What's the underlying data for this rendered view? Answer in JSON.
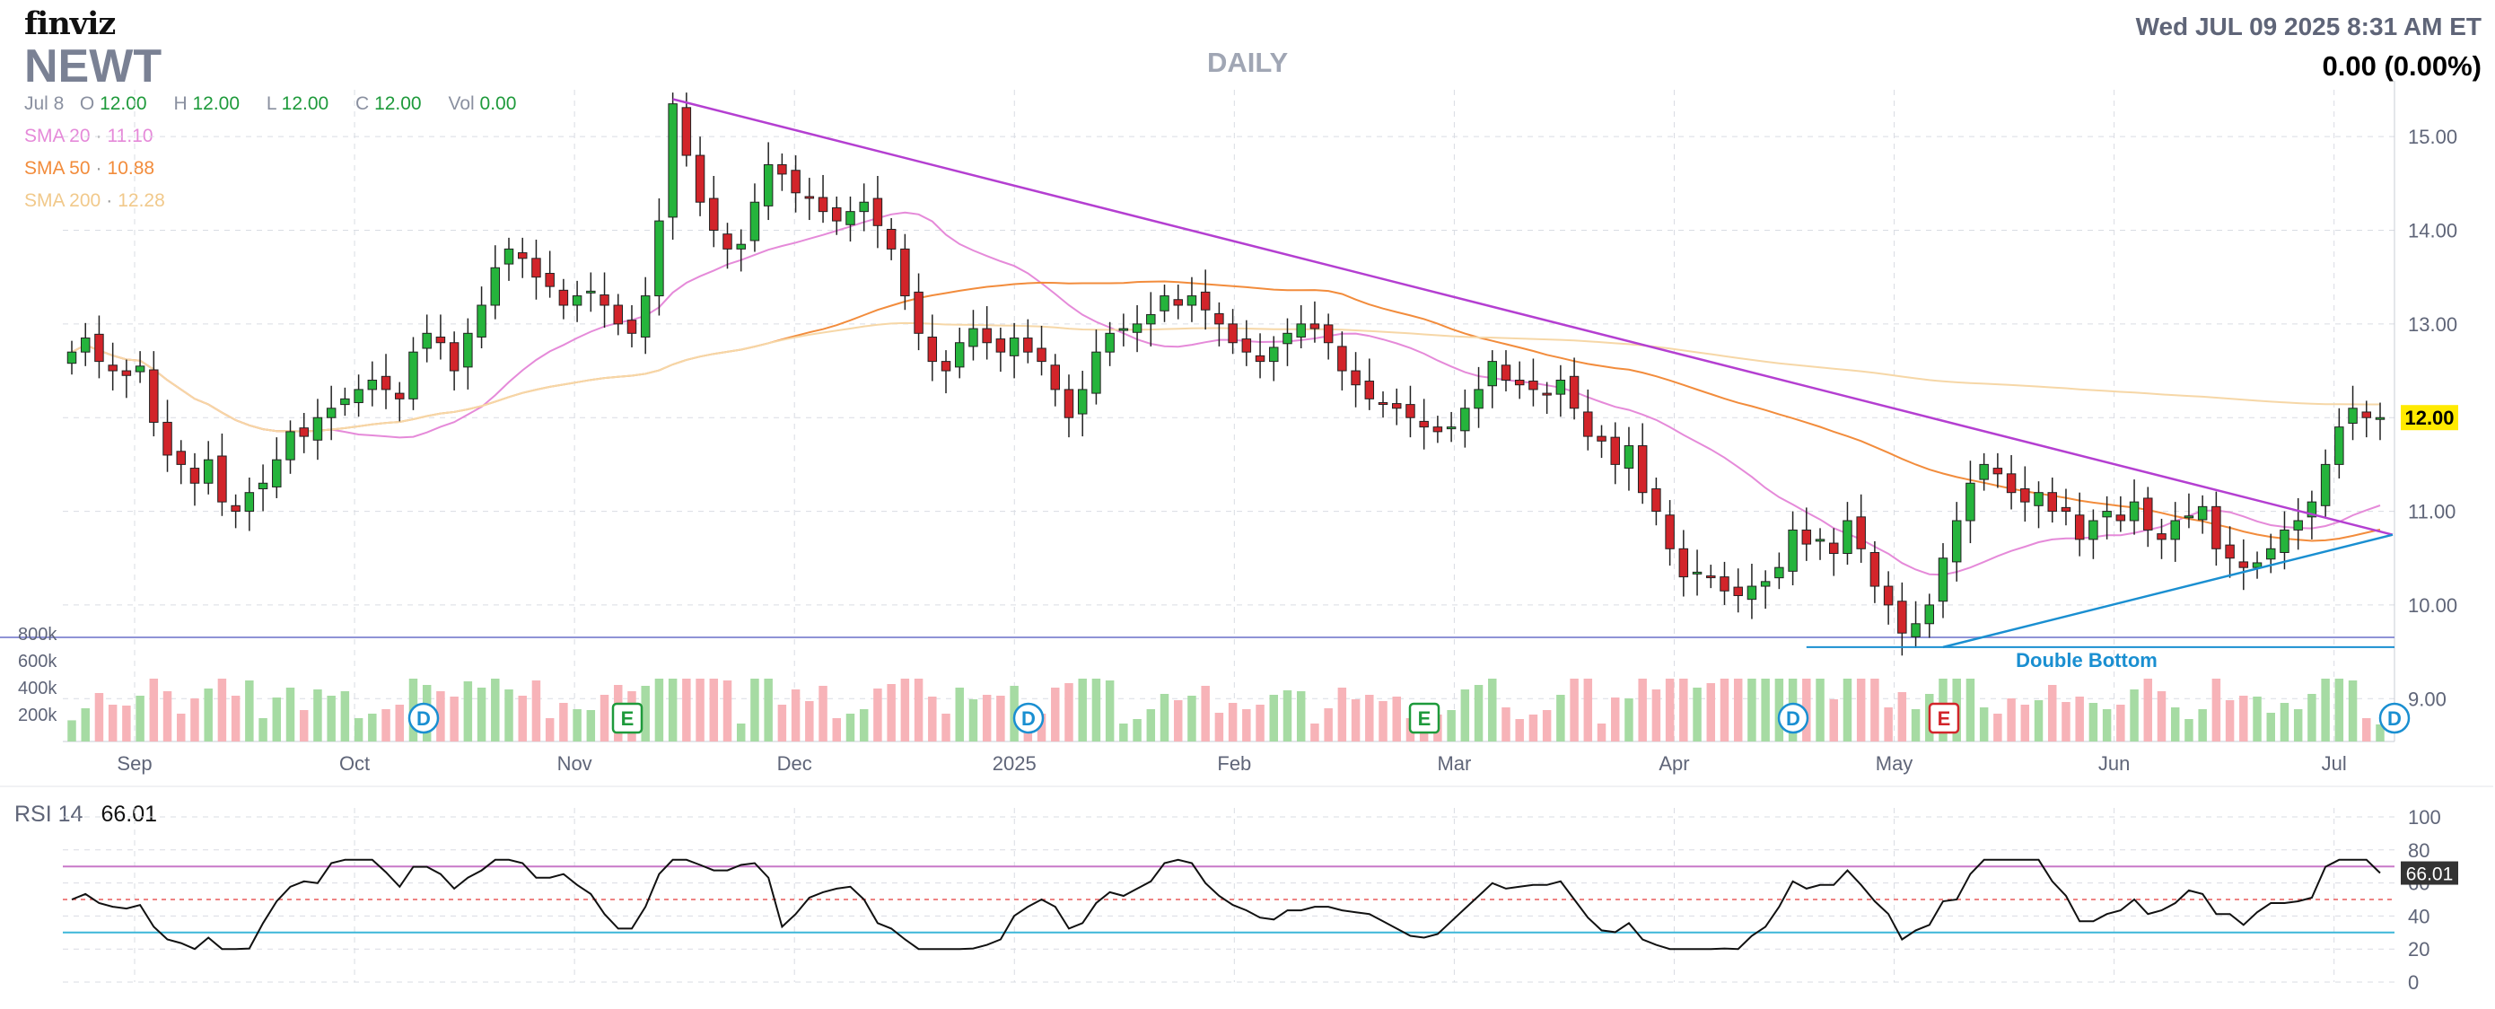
{
  "header": {
    "logo": "finviz",
    "ticker": "NEWT",
    "period": "DAILY",
    "datetime": "Wed JUL 09 2025 8:31 AM ET",
    "change": "0.00 (0.00%)",
    "ohlc": {
      "date": "Jul 8",
      "o_label": "O",
      "o": "12.00",
      "h_label": "H",
      "h": "12.00",
      "l_label": "L",
      "l": "12.00",
      "c_label": "C",
      "c": "12.00",
      "vol_label": "Vol",
      "vol": "0.00"
    }
  },
  "sma": [
    {
      "label": "SMA 20",
      "value": "11.10",
      "color": "#e58ad9"
    },
    {
      "label": "SMA 50",
      "value": "10.88",
      "color": "#f28c3c"
    },
    {
      "label": "SMA 200",
      "value": "12.28",
      "color": "#f6d7a7"
    }
  ],
  "colors": {
    "up": "#25b43c",
    "down": "#d2242a",
    "up_vol": "#a6dba3",
    "down_vol": "#f7b3b8",
    "trendline": "#b43fd1",
    "support": "#1a8fd1",
    "grid": "#d9dce3",
    "price_tag": "#ffea00"
  },
  "chart_data": [
    {
      "type": "candlestick",
      "title": "NEWT DAILY",
      "y_ticks": [
        "15.00",
        "14.00",
        "13.00",
        "12.00",
        "11.00",
        "10.00",
        "9.00"
      ],
      "ylim": [
        8.6,
        15.5
      ],
      "x_ticks": [
        "Sep",
        "Oct",
        "Nov",
        "Dec",
        "2025",
        "Feb",
        "Mar",
        "Apr",
        "May",
        "Jun",
        "Jul"
      ],
      "last_price_label": "12.00",
      "start": 12.7,
      "end": 12.0,
      "closes": [
        12.7,
        12.85,
        12.6,
        12.5,
        12.45,
        12.55,
        11.95,
        11.6,
        11.5,
        11.3,
        11.55,
        11.1,
        11.0,
        11.2,
        11.3,
        11.55,
        11.85,
        11.8,
        12.0,
        12.1,
        12.2,
        12.3,
        12.4,
        12.3,
        12.2,
        12.7,
        12.9,
        12.8,
        12.5,
        12.9,
        13.2,
        13.6,
        13.8,
        13.7,
        13.5,
        13.4,
        13.2,
        13.3,
        13.35,
        13.2,
        13.0,
        12.9,
        13.3,
        14.1,
        15.35,
        14.8,
        14.3,
        14.0,
        13.8,
        13.85,
        14.3,
        14.7,
        14.6,
        14.4,
        14.35,
        14.2,
        14.1,
        14.2,
        14.3,
        14.05,
        13.8,
        13.3,
        12.9,
        12.6,
        12.5,
        12.8,
        12.95,
        12.8,
        12.7,
        12.85,
        12.7,
        12.6,
        12.3,
        12.0,
        12.3,
        12.7,
        12.9,
        12.95,
        13.0,
        13.1,
        13.3,
        13.2,
        13.3,
        13.15,
        13.0,
        12.8,
        12.7,
        12.6,
        12.75,
        12.9,
        13.0,
        12.95,
        12.8,
        12.5,
        12.35,
        12.2,
        12.15,
        12.1,
        12.0,
        11.9,
        11.85,
        11.9,
        12.1,
        12.3,
        12.6,
        12.4,
        12.35,
        12.3,
        12.25,
        12.4,
        12.1,
        11.8,
        11.75,
        11.5,
        11.7,
        11.2,
        11.0,
        10.6,
        10.3,
        10.35,
        10.3,
        10.15,
        10.1,
        10.2,
        10.25,
        10.4,
        10.8,
        10.65,
        10.7,
        10.55,
        10.9,
        10.6,
        10.2,
        10.0,
        9.7,
        9.8,
        10.0,
        10.5,
        10.9,
        11.3,
        11.5,
        11.4,
        11.2,
        11.1,
        11.2,
        11.0,
        11.0,
        10.7,
        10.9,
        11.0,
        10.9,
        11.1,
        10.8,
        10.7,
        10.9,
        10.95,
        11.05,
        10.6,
        10.5,
        10.4,
        10.45,
        10.6,
        10.8,
        10.9,
        11.1,
        11.5,
        11.9,
        12.1,
        12.0,
        12.0
      ],
      "volume_ticks": [
        "800k",
        "600k",
        "400k",
        "200k"
      ],
      "event_markers": [
        {
          "type": "D",
          "date": "Oct",
          "color": "#1a8fd1"
        },
        {
          "type": "E",
          "date": "Nov",
          "color": "#1e9a3b"
        },
        {
          "type": "D",
          "date": "2025",
          "color": "#1a8fd1"
        },
        {
          "type": "E",
          "date": "Mar",
          "color": "#1e9a3b"
        },
        {
          "type": "D",
          "date": "Apr",
          "color": "#1a8fd1"
        },
        {
          "type": "E",
          "date": "May",
          "color": "#d2242a"
        },
        {
          "type": "D",
          "date": "Jul",
          "color": "#1a8fd1"
        }
      ],
      "annotations": [
        {
          "text": "Double Bottom",
          "type": "support",
          "price": 9.55
        },
        {
          "type": "downtrend",
          "from": 15.4,
          "to": 10.75
        },
        {
          "type": "uptrend",
          "from": 9.55,
          "to": 10.75
        }
      ]
    },
    {
      "type": "line",
      "title": "RSI 14",
      "value_label": "66.01",
      "y_ticks": [
        "100",
        "80",
        "60",
        "40",
        "20",
        "0"
      ],
      "ylim": [
        0,
        100
      ],
      "levels": [
        70,
        50,
        30
      ]
    }
  ],
  "rsi": {
    "label": "RSI 14",
    "value": "66.01"
  }
}
